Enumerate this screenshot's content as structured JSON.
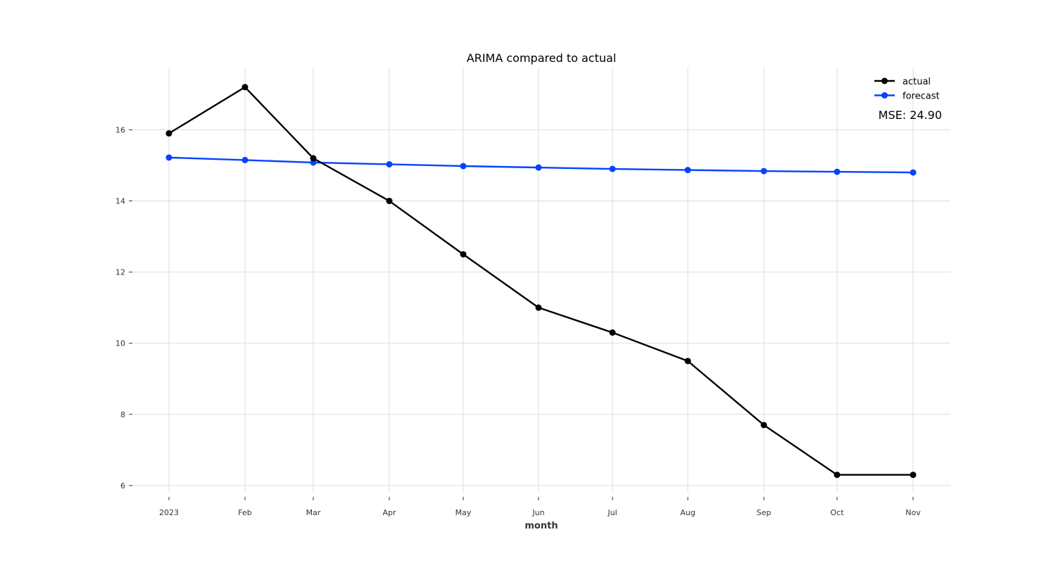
{
  "chart_data": {
    "type": "line",
    "title": "ARIMA compared to actual",
    "xlabel": "month",
    "ylabel": "",
    "categories": [
      "2023",
      "Feb",
      "Mar",
      "Apr",
      "May",
      "Jun",
      "Jul",
      "Aug",
      "Sep",
      "Oct",
      "Nov"
    ],
    "x_dates": [
      "2023-01",
      "2023-02",
      "2023-03",
      "2023-04",
      "2023-05",
      "2023-06",
      "2023-07",
      "2023-08",
      "2023-09",
      "2023-10",
      "2023-11"
    ],
    "yticks": [
      6,
      8,
      10,
      12,
      14,
      16
    ],
    "ylim": [
      5.8,
      17.75
    ],
    "grid": true,
    "legend_position": "top-right",
    "series": [
      {
        "name": "actual",
        "color": "#000000",
        "values": [
          15.9,
          17.2,
          15.2,
          14.0,
          12.5,
          11.0,
          10.3,
          9.5,
          7.7,
          6.3,
          6.3
        ]
      },
      {
        "name": "forecast",
        "color": "#0443ff",
        "values": [
          15.22,
          15.15,
          15.08,
          15.03,
          14.98,
          14.94,
          14.9,
          14.87,
          14.84,
          14.82,
          14.8
        ]
      }
    ],
    "annotations": [
      {
        "text": "MSE: 24.90",
        "position": "top-right"
      }
    ]
  }
}
